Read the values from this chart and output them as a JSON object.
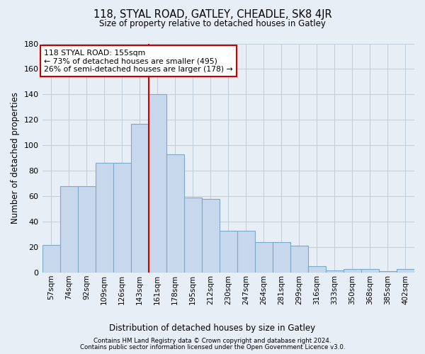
{
  "title1": "118, STYAL ROAD, GATLEY, CHEADLE, SK8 4JR",
  "title2": "Size of property relative to detached houses in Gatley",
  "xlabel": "Distribution of detached houses by size in Gatley",
  "ylabel": "Number of detached properties",
  "bin_labels": [
    "57sqm",
    "74sqm",
    "92sqm",
    "109sqm",
    "126sqm",
    "143sqm",
    "161sqm",
    "178sqm",
    "195sqm",
    "212sqm",
    "230sqm",
    "247sqm",
    "264sqm",
    "281sqm",
    "299sqm",
    "316sqm",
    "333sqm",
    "350sqm",
    "368sqm",
    "385sqm",
    "402sqm"
  ],
  "bar_heights": [
    22,
    68,
    68,
    86,
    86,
    117,
    140,
    93,
    59,
    58,
    33,
    33,
    24,
    24,
    21,
    5,
    2,
    3,
    3,
    1,
    3
  ],
  "bar_color": "#c8d8ec",
  "bar_edge_color": "#7aaac8",
  "vline_x": 6,
  "vline_color": "#cc0000",
  "annotation_text": "118 STYAL ROAD: 155sqm\n← 73% of detached houses are smaller (495)\n26% of semi-detached houses are larger (178) →",
  "annotation_box_color": "#ffffff",
  "annotation_box_edge": "#cc0000",
  "grid_color": "#c0ccd8",
  "background_color": "#e8eef5",
  "footer1": "Contains HM Land Registry data © Crown copyright and database right 2024.",
  "footer2": "Contains public sector information licensed under the Open Government Licence v3.0.",
  "ylim": [
    0,
    180
  ],
  "yticks": [
    0,
    20,
    40,
    60,
    80,
    100,
    120,
    140,
    160,
    180
  ]
}
